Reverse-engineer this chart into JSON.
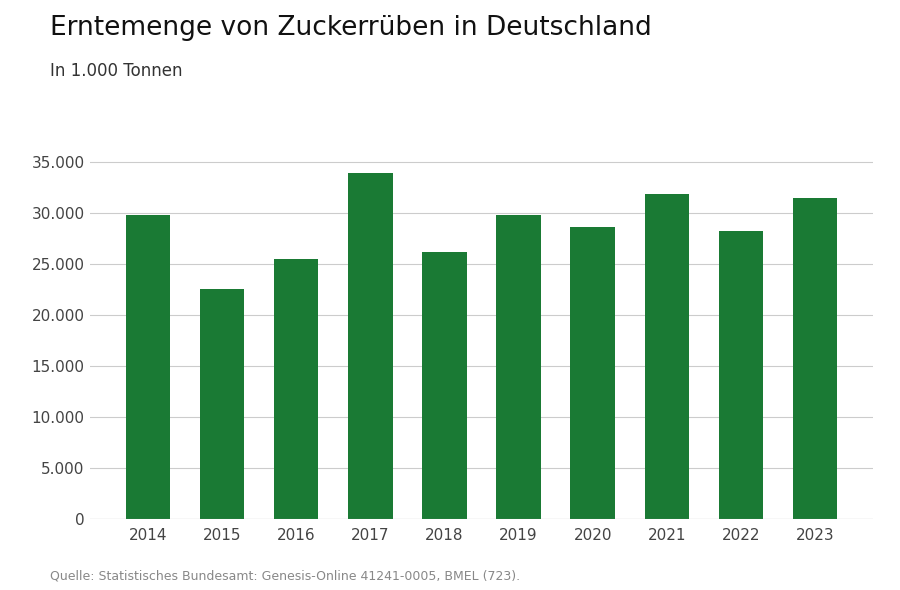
{
  "title": "Erntemenge von Zuckerrüben in Deutschland",
  "subtitle": "In 1.000 Tonnen",
  "source": "Quelle: Statistisches Bundesamt: Genesis-Online 41241-0005, BMEL (723).",
  "years": [
    2014,
    2015,
    2016,
    2017,
    2018,
    2019,
    2020,
    2021,
    2022,
    2023
  ],
  "values": [
    29800,
    22600,
    25500,
    33900,
    26200,
    29800,
    28600,
    31900,
    28200,
    31500
  ],
  "bar_color": "#1a7a34",
  "background_color": "#ffffff",
  "ylim": [
    0,
    37000
  ],
  "yticks": [
    0,
    5000,
    10000,
    15000,
    20000,
    25000,
    30000,
    35000
  ],
  "grid_color": "#cccccc",
  "title_fontsize": 19,
  "subtitle_fontsize": 12,
  "tick_fontsize": 11,
  "source_fontsize": 9
}
